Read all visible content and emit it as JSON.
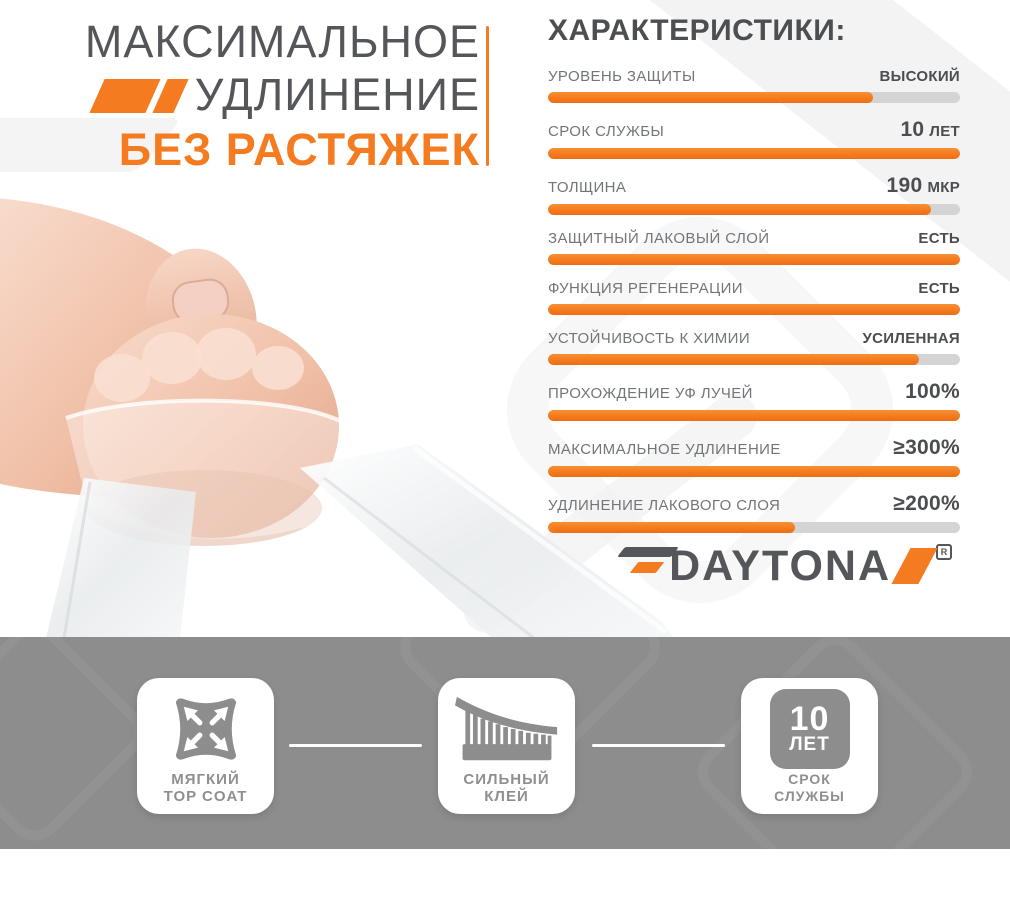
{
  "title": {
    "line1": "МАКСИМАЛЬНОЕ",
    "line2": "УДЛИНЕНИЕ",
    "line3": "БЕЗ РАСТЯЖЕК"
  },
  "characteristics": {
    "heading": "ХАРАКТЕРИСТИКИ:",
    "rows": [
      {
        "label": "УРОВЕНЬ ЗАЩИТЫ",
        "value_text": "ВЫСОКИЙ",
        "percent": 79
      },
      {
        "label": "СРОК СЛУЖБЫ",
        "value_num": "10",
        "value_text": "ЛЕТ",
        "percent": 100
      },
      {
        "label": "ТОЛЩИНА",
        "value_num": "190",
        "value_text": "МКР",
        "percent": 93
      },
      {
        "label": "ЗАЩИТНЫЙ ЛАКОВЫЙ СЛОЙ",
        "value_text": "ЕСТЬ",
        "percent": 100
      },
      {
        "label": "ФУНКЦИЯ РЕГЕНЕРАЦИИ",
        "value_text": "ЕСТЬ",
        "percent": 100
      },
      {
        "label": "УСТОЙЧИВОСТЬ К ХИМИИ",
        "value_text": "УСИЛЕННАЯ",
        "percent": 90
      },
      {
        "label": "ПРОХОЖДЕНИЕ УФ ЛУЧЕЙ",
        "value_num": "100%",
        "percent": 100
      },
      {
        "label": "МАКСИМАЛЬНОЕ УДЛИНЕНИЕ",
        "value_num": "≥300%",
        "percent": 100
      },
      {
        "label": "УДЛИНЕНИЕ ЛАКОВОГО СЛОЯ",
        "value_num": "≥200%",
        "percent": 60
      }
    ]
  },
  "brand": {
    "name": "DAYTONA",
    "registered": "R"
  },
  "features": [
    {
      "icon": "stretch-pillow-icon",
      "line1": "МЯГКИЙ",
      "line2": "TOP COAT"
    },
    {
      "icon": "adhesive-comb-icon",
      "line1": "СИЛЬНЫЙ",
      "line2": "КЛЕЙ"
    },
    {
      "icon": "10-years-badge",
      "badge_number": "10",
      "badge_unit": "ЛЕТ",
      "line1": "СРОК",
      "line2": "СЛУЖБЫ"
    }
  ],
  "colors": {
    "accent": "#f47b20",
    "track": "#d4d4d4",
    "band": "#8d8d8d",
    "title_grey": "#54565a",
    "value_dark": "#4b4d50",
    "label_grey": "#72757a",
    "card_text": "#8f8f8f"
  }
}
